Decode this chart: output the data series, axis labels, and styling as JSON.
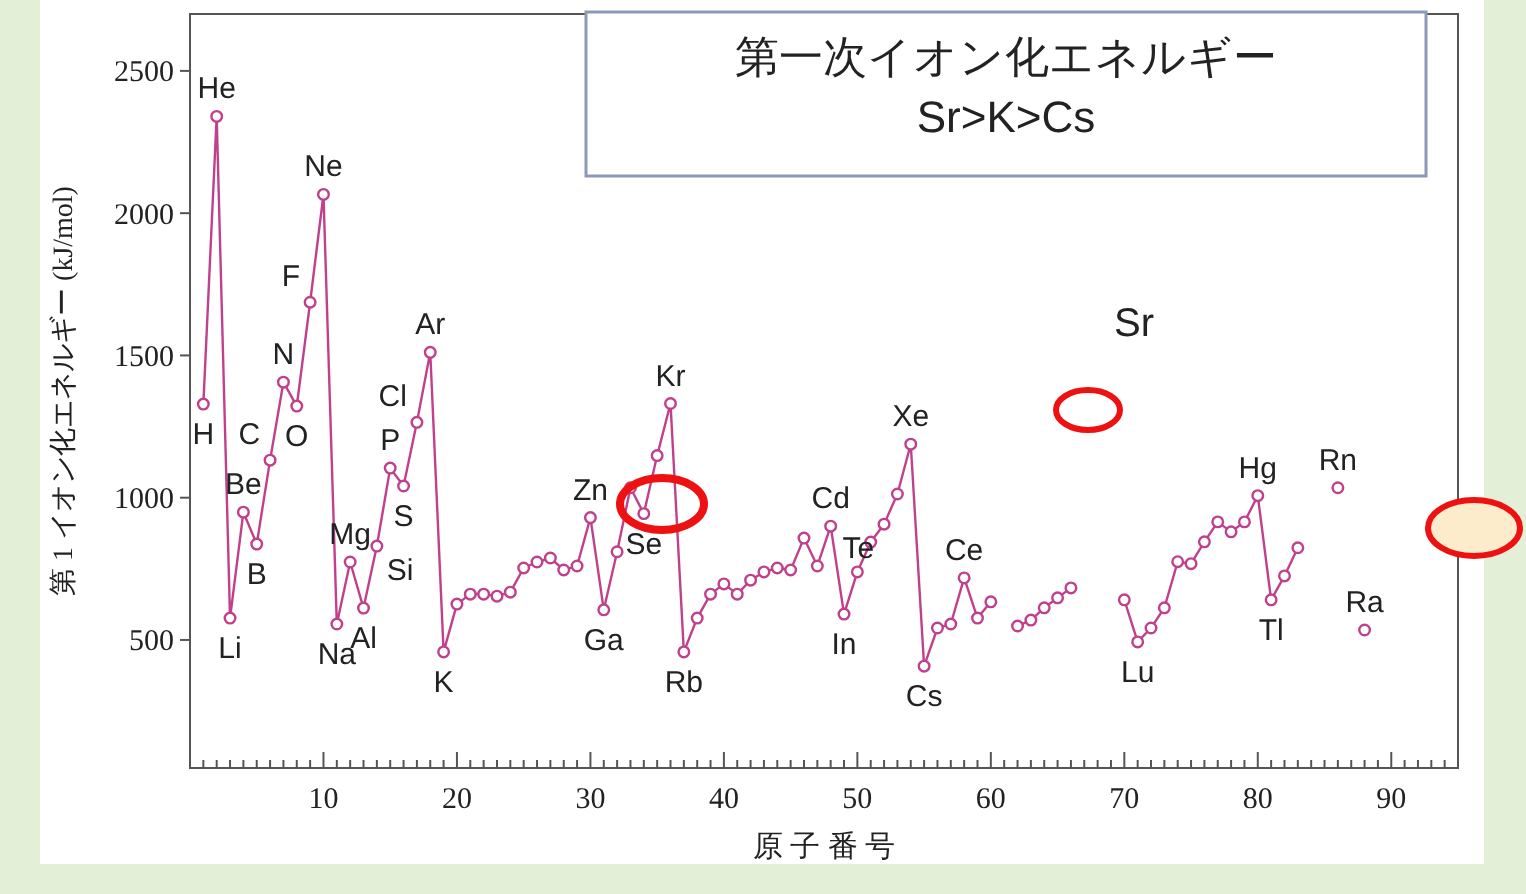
{
  "chart_data": {
    "type": "line",
    "title": "第一次イオン化エネルギー",
    "subtitle": "Sr>K>Cs",
    "xlabel": "原 子 番 号",
    "ylabel": "第 1 イオン化エネルギー (kJ/mol)",
    "x": [
      1,
      2,
      3,
      4,
      5,
      6,
      7,
      8,
      9,
      10,
      11,
      12,
      13,
      14,
      15,
      16,
      17,
      18,
      19,
      20,
      21,
      22,
      23,
      24,
      25,
      26,
      27,
      28,
      29,
      30,
      31,
      32,
      33,
      34,
      35,
      36,
      37,
      38,
      39,
      40,
      41,
      42,
      43,
      44,
      45,
      46,
      47,
      48,
      49,
      50,
      51,
      52,
      53,
      54,
      55,
      56,
      57,
      58,
      59,
      60,
      61,
      62,
      63,
      64,
      65,
      66,
      67,
      68,
      69,
      70,
      71,
      72,
      73,
      74,
      75,
      76,
      77,
      78,
      79,
      80,
      81,
      82,
      83,
      84,
      85,
      86,
      87,
      88
    ],
    "series": [
      {
        "color": "#c0408c",
        "values": [
          1329,
          2340,
          577,
          949,
          837,
          1132,
          1406,
          1322,
          1687,
          2066,
          556,
          774,
          612,
          830,
          1104,
          1041,
          1265,
          1511,
          458,
          626,
          661,
          661,
          654,
          668,
          753,
          774,
          788,
          746,
          760,
          930,
          606,
          810,
          1035,
          944,
          1148,
          1331,
          458,
          577,
          661,
          697,
          661,
          710,
          739,
          753,
          746,
          858,
          760,
          900,
          591,
          739,
          844,
          907,
          1013,
          1188,
          408,
          542,
          556,
          718,
          577,
          634,
          null,
          549,
          570,
          613,
          648,
          683,
          null,
          null,
          null,
          641,
          493,
          542,
          613,
          775,
          768,
          845,
          915,
          880,
          915,
          1007,
          641,
          725,
          824,
          null,
          null,
          1035,
          null,
          535
        ]
      }
    ],
    "marker": "circle",
    "line_style": "solid",
    "grid": false,
    "xlim": [
      0,
      95
    ],
    "ylim": [
      50,
      2700
    ],
    "yticks": [
      500,
      1000,
      1500,
      2000,
      2500
    ],
    "xticks": [
      {
        "value": 1,
        "label": null
      },
      {
        "value": 2,
        "label": null
      },
      {
        "value": 3,
        "label": null
      },
      {
        "value": 4,
        "label": null
      },
      {
        "value": 5,
        "label": null
      },
      {
        "value": 6,
        "label": null
      },
      {
        "value": 7,
        "label": null
      },
      {
        "value": 8,
        "label": null
      },
      {
        "value": 9,
        "label": null
      },
      10,
      {
        "value": 11,
        "label": null
      },
      {
        "value": 12,
        "label": null
      },
      {
        "value": 13,
        "label": null
      },
      {
        "value": 14,
        "label": null
      },
      {
        "value": 15,
        "label": null
      },
      {
        "value": 16,
        "label": null
      },
      {
        "value": 17,
        "label": null
      },
      {
        "value": 18,
        "label": null
      },
      {
        "value": 19,
        "label": null
      },
      20,
      {
        "value": 21,
        "label": null
      },
      {
        "value": 22,
        "label": null
      },
      {
        "value": 23,
        "label": null
      },
      {
        "value": 24,
        "label": null
      },
      {
        "value": 25,
        "label": null
      },
      {
        "value": 26,
        "label": null
      },
      {
        "value": 27,
        "label": null
      },
      {
        "value": 28,
        "label": null
      },
      {
        "value": 29,
        "label": null
      },
      30,
      {
        "value": 31,
        "label": null
      },
      {
        "value": 32,
        "label": null
      },
      {
        "value": 33,
        "label": null
      },
      {
        "value": 34,
        "label": null
      },
      {
        "value": 35,
        "label": null
      },
      {
        "value": 36,
        "label": null
      },
      {
        "value": 37,
        "label": null
      },
      {
        "value": 38,
        "label": null
      },
      {
        "value": 39,
        "label": null
      },
      40,
      {
        "value": 41,
        "label": null
      },
      {
        "value": 42,
        "label": null
      },
      {
        "value": 43,
        "label": null
      },
      {
        "value": 44,
        "label": null
      },
      {
        "value": 45,
        "label": null
      },
      {
        "value": 46,
        "label": null
      },
      {
        "value": 47,
        "label": null
      },
      {
        "value": 48,
        "label": null
      },
      {
        "value": 49,
        "label": null
      },
      50,
      {
        "value": 51,
        "label": null
      },
      {
        "value": 52,
        "label": null
      },
      {
        "value": 53,
        "label": null
      },
      {
        "value": 54,
        "label": null
      },
      {
        "value": 55,
        "label": null
      },
      {
        "value": 56,
        "label": null
      },
      {
        "value": 57,
        "label": null
      },
      {
        "value": 58,
        "label": null
      },
      {
        "value": 59,
        "label": null
      },
      60,
      {
        "value": 61,
        "label": null
      },
      {
        "value": 62,
        "label": null
      },
      {
        "value": 63,
        "label": null
      },
      {
        "value": 64,
        "label": null
      },
      {
        "value": 65,
        "label": null
      },
      {
        "value": 66,
        "label": null
      },
      {
        "value": 67,
        "label": null
      },
      {
        "value": 68,
        "label": null
      },
      {
        "value": 69,
        "label": null
      },
      70,
      {
        "value": 71,
        "label": null
      },
      {
        "value": 72,
        "label": null
      },
      {
        "value": 73,
        "label": null
      },
      {
        "value": 74,
        "label": null
      },
      {
        "value": 75,
        "label": null
      },
      {
        "value": 76,
        "label": null
      },
      {
        "value": 77,
        "label": null
      },
      {
        "value": 78,
        "label": null
      },
      {
        "value": 79,
        "label": null
      },
      80,
      {
        "value": 81,
        "label": null
      },
      {
        "value": 82,
        "label": null
      },
      {
        "value": 83,
        "label": null
      },
      {
        "value": 84,
        "label": null
      },
      {
        "value": 85,
        "label": null
      },
      {
        "value": 86,
        "label": null
      },
      {
        "value": 87,
        "label": null
      },
      {
        "value": 88,
        "label": null
      },
      {
        "value": 89,
        "label": null
      },
      90,
      {
        "value": 91,
        "label": null
      },
      {
        "value": 92,
        "label": null
      },
      {
        "value": 93,
        "label": null
      },
      {
        "value": 94,
        "label": null
      }
    ],
    "annotations": [
      {
        "text": "H",
        "x": 1,
        "y": 1329
      },
      {
        "text": "He",
        "x": 2,
        "y": 2340
      },
      {
        "text": "Li",
        "x": 3,
        "y": 577
      },
      {
        "text": "Be",
        "x": 4,
        "y": 949
      },
      {
        "text": "B",
        "x": 5,
        "y": 837
      },
      {
        "text": "C",
        "x": 6,
        "y": 1132
      },
      {
        "text": "N",
        "x": 7,
        "y": 1406
      },
      {
        "text": "O",
        "x": 8,
        "y": 1322
      },
      {
        "text": "F",
        "x": 9,
        "y": 1687
      },
      {
        "text": "Ne",
        "x": 10,
        "y": 2066
      },
      {
        "text": "Na",
        "x": 11,
        "y": 556
      },
      {
        "text": "Mg",
        "x": 12,
        "y": 774
      },
      {
        "text": "Al",
        "x": 13,
        "y": 612
      },
      {
        "text": "Si",
        "x": 14,
        "y": 830
      },
      {
        "text": "P",
        "x": 15,
        "y": 1104
      },
      {
        "text": "S",
        "x": 16,
        "y": 1041
      },
      {
        "text": "Cl",
        "x": 17,
        "y": 1265
      },
      {
        "text": "Ar",
        "x": 18,
        "y": 1511
      },
      {
        "text": "K",
        "x": 19,
        "y": 458
      },
      {
        "text": "Zn",
        "x": 30,
        "y": 930
      },
      {
        "text": "Ga",
        "x": 31,
        "y": 606
      },
      {
        "text": "Se",
        "x": 34,
        "y": 944
      },
      {
        "text": "Kr",
        "x": 36,
        "y": 1331
      },
      {
        "text": "Rb",
        "x": 37,
        "y": 458
      },
      {
        "text": "Cd",
        "x": 48,
        "y": 900
      },
      {
        "text": "In",
        "x": 49,
        "y": 591
      },
      {
        "text": "Te",
        "x": 52,
        "y": 907
      },
      {
        "text": "Xe",
        "x": 54,
        "y": 1188
      },
      {
        "text": "Cs",
        "x": 55,
        "y": 408
      },
      {
        "text": "Ce",
        "x": 58,
        "y": 718
      },
      {
        "text": "Lu",
        "x": 71,
        "y": 493
      },
      {
        "text": "Hg",
        "x": 80,
        "y": 1007
      },
      {
        "text": "Tl",
        "x": 81,
        "y": 641
      },
      {
        "text": "Rn",
        "x": 86,
        "y": 1035
      },
      {
        "text": "Ra",
        "x": 88,
        "y": 535
      },
      "Sr"
    ]
  }
}
